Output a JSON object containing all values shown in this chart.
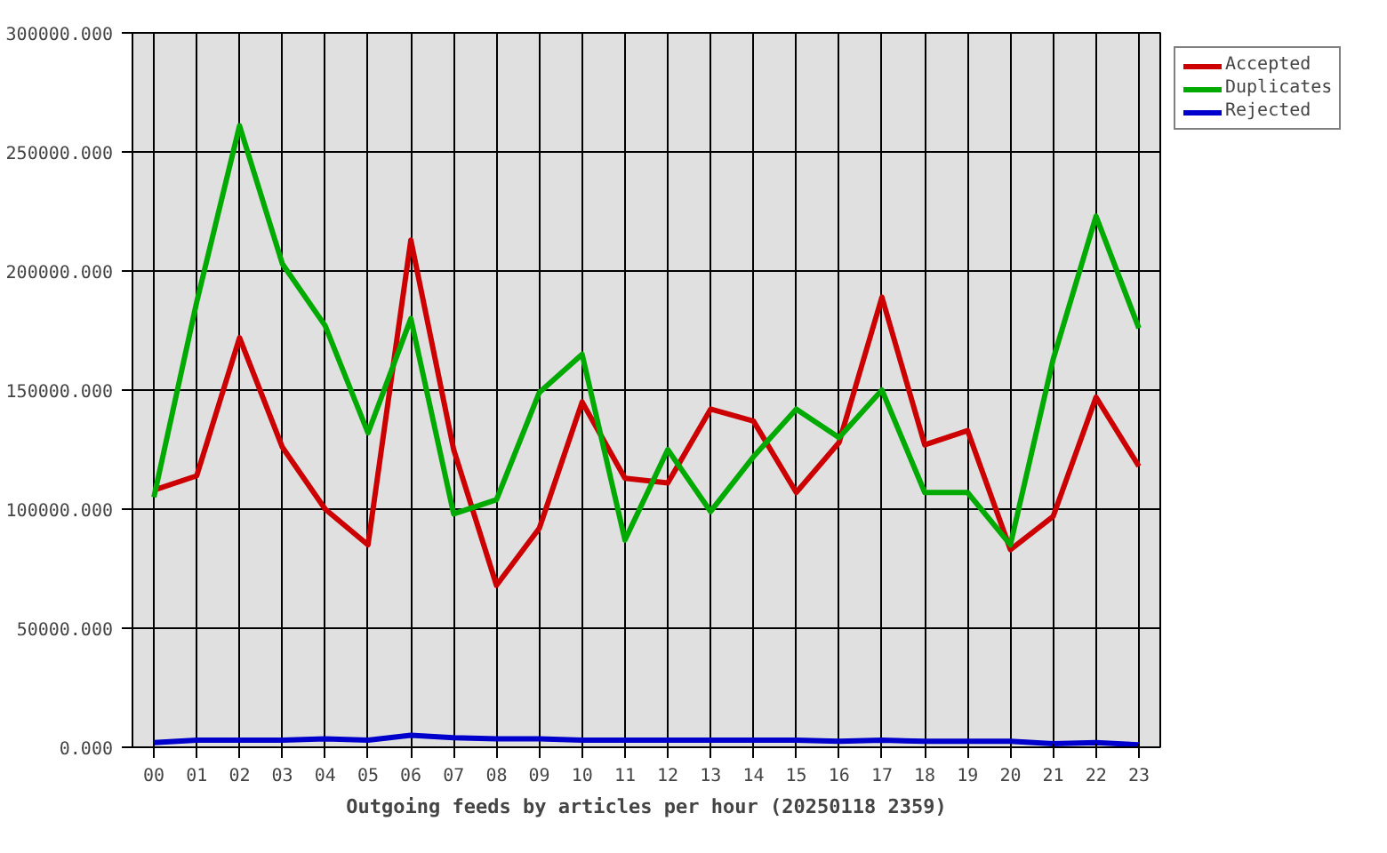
{
  "chart_data": {
    "type": "line",
    "xlabel": "Outgoing feeds by articles per hour (20250118 2359)",
    "categories": [
      "00",
      "01",
      "02",
      "03",
      "04",
      "05",
      "06",
      "07",
      "08",
      "09",
      "10",
      "11",
      "12",
      "13",
      "14",
      "15",
      "16",
      "17",
      "18",
      "19",
      "20",
      "21",
      "22",
      "23"
    ],
    "series": [
      {
        "name": "Accepted",
        "color": "#cc0000",
        "values": [
          108000,
          114000,
          172000,
          126000,
          100000,
          85000,
          213000,
          125000,
          68000,
          92000,
          145000,
          113000,
          111000,
          142000,
          137000,
          107000,
          128000,
          189000,
          127000,
          133000,
          83000,
          97000,
          147000,
          118000
        ]
      },
      {
        "name": "Duplicates",
        "color": "#00aa00",
        "values": [
          105000,
          187000,
          261000,
          203000,
          177000,
          132000,
          180000,
          98000,
          104000,
          149000,
          165000,
          87000,
          125000,
          99000,
          122000,
          142000,
          130000,
          150000,
          107000,
          107000,
          85000,
          163000,
          223000,
          176000
        ]
      },
      {
        "name": "Rejected",
        "color": "#0000cc",
        "values": [
          2000,
          3000,
          3000,
          3000,
          3500,
          3000,
          5000,
          4000,
          3500,
          3500,
          3000,
          3000,
          3000,
          3000,
          3000,
          3000,
          2500,
          3000,
          2500,
          2500,
          2500,
          1500,
          2000,
          1000
        ]
      }
    ],
    "ylim": [
      0,
      300000
    ],
    "yticks": [
      {
        "value": 0,
        "label": "0.000"
      },
      {
        "value": 50000,
        "label": "50000.000"
      },
      {
        "value": 100000,
        "label": "100000.000"
      },
      {
        "value": 150000,
        "label": "150000.000"
      },
      {
        "value": 200000,
        "label": "200000.000"
      },
      {
        "value": 250000,
        "label": "250000.000"
      },
      {
        "value": 300000,
        "label": "300000.000"
      }
    ],
    "grid": true,
    "legend": "top right"
  }
}
